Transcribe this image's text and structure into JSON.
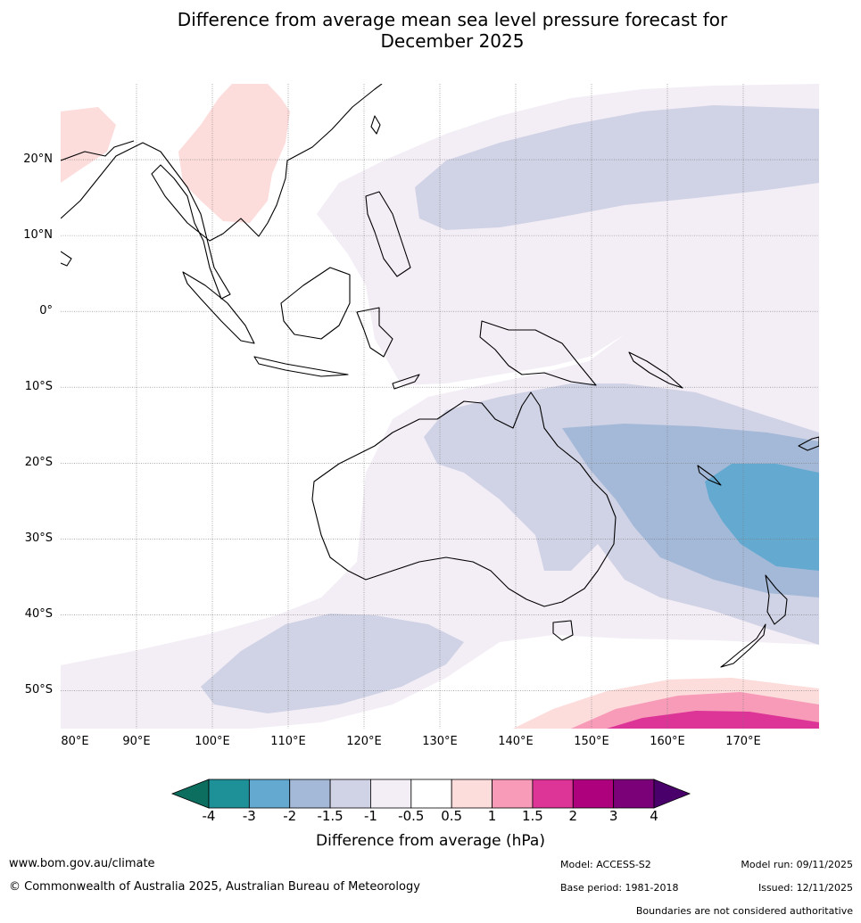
{
  "header": {
    "title_line1": "Difference from average mean sea level pressure forecast for",
    "title_line2": "December 2025"
  },
  "map": {
    "lat_labels": [
      "20°N",
      "10°N",
      "0°",
      "10°S",
      "20°S",
      "30°S",
      "40°S",
      "50°S"
    ],
    "lon_labels": [
      "80°E",
      "90°E",
      "100°E",
      "110°E",
      "120°E",
      "130°E",
      "140°E",
      "150°E",
      "160°E",
      "170°E"
    ],
    "lat_range": [
      -55,
      30
    ],
    "lon_range": [
      80,
      180
    ]
  },
  "colorbar": {
    "title": "Difference from average (hPa)",
    "ticks": [
      "-4",
      "-3",
      "-2",
      "-1.5",
      "-1",
      "-0.5",
      "0.5",
      "1",
      "1.5",
      "2",
      "3",
      "4"
    ],
    "colors": [
      "#0b6e5e",
      "#1e9198",
      "#64a9d0",
      "#a4b9d8",
      "#d0d2e5",
      "#f3edf5",
      "#ffffff",
      "#fddcdc",
      "#f79bb8",
      "#dd3497",
      "#ae017e",
      "#7a0177",
      "#4a006a"
    ]
  },
  "footer": {
    "website": "www.bom.gov.au/climate",
    "copyright": "© Commonwealth of Australia 2025, Australian Bureau of Meteorology",
    "model": "Model: ACCESS-S2",
    "base_period": "Base period: 1981-2018",
    "model_run": "Model run: 09/11/2025",
    "issued": "Issued: 12/11/2025",
    "disclaimer": "Boundaries are not considered authoritative"
  }
}
